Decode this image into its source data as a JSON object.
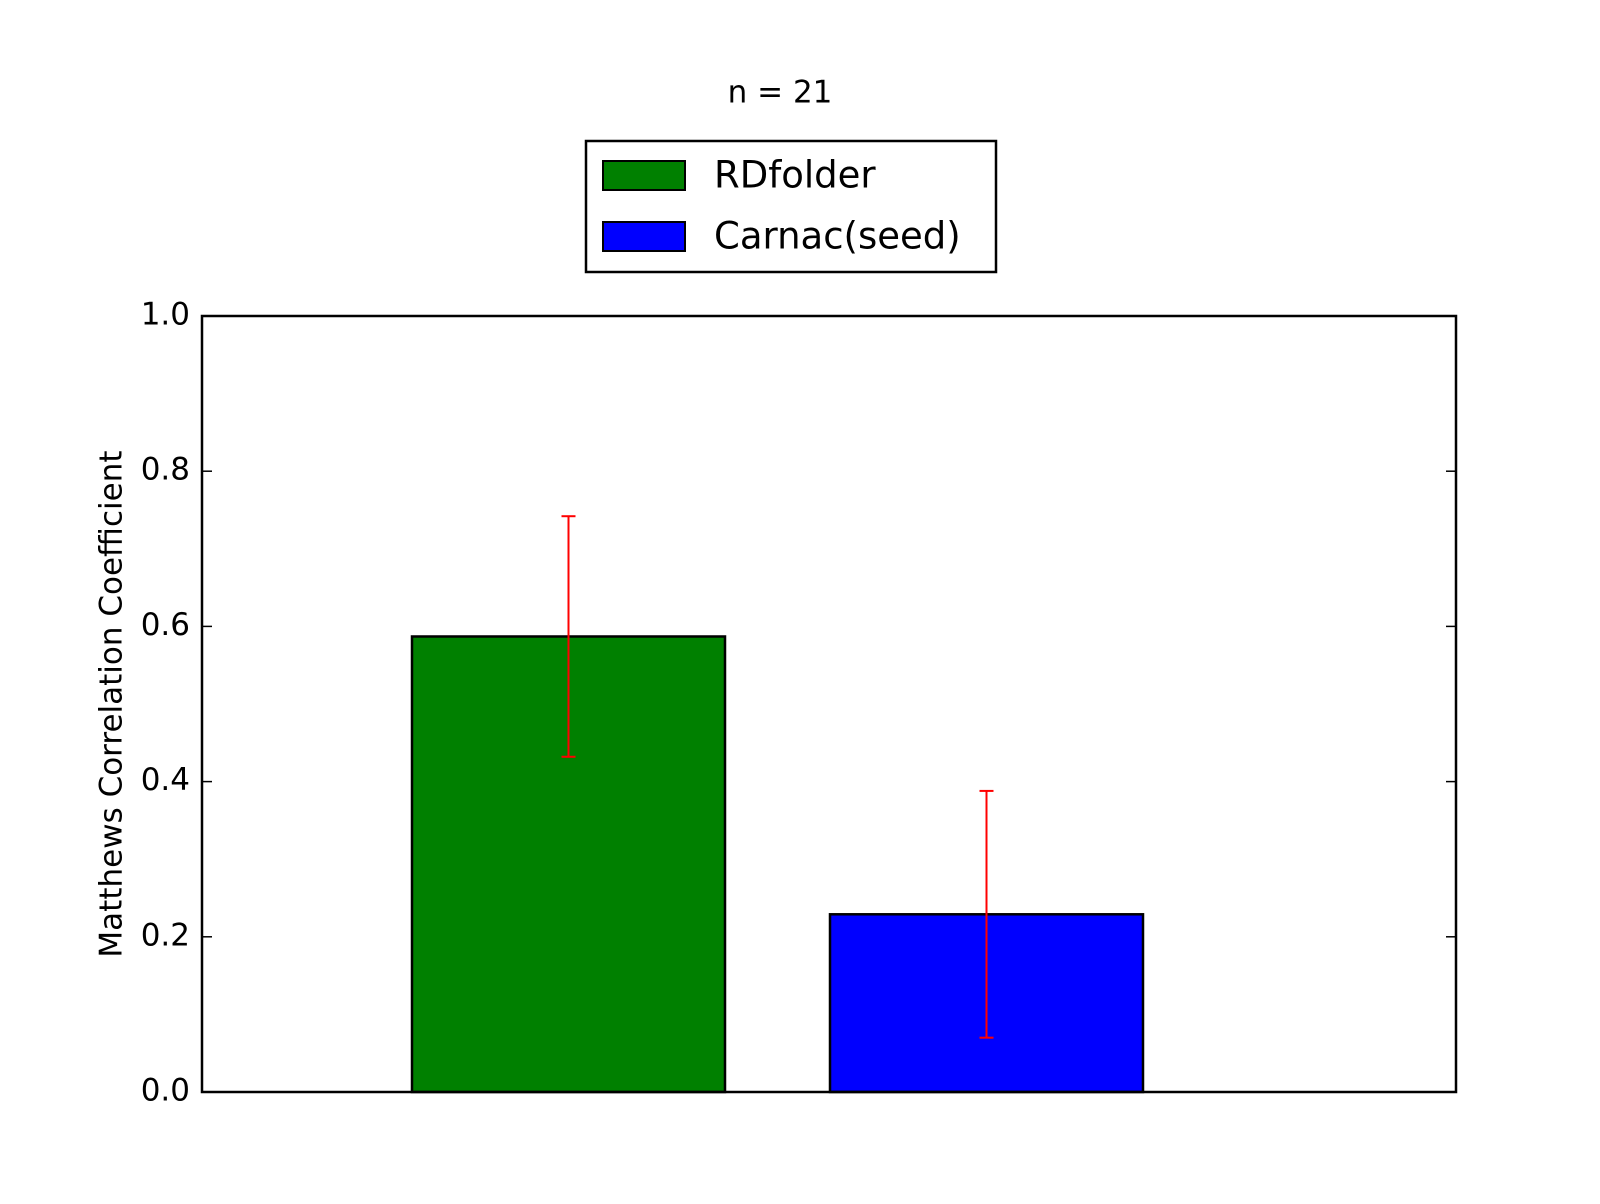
{
  "chart_data": {
    "type": "bar",
    "title": "n = 21",
    "y_label": "Matthews Correlation Coefficient",
    "categories": [
      null
    ],
    "series": [
      {
        "name": "RDfolder",
        "color": "#008000",
        "values": [
          0.587
        ],
        "errors": [
          0.155
        ]
      },
      {
        "name": "Carnac(seed)",
        "color": "#0000ff",
        "values": [
          0.229
        ],
        "errors": [
          0.159
        ]
      }
    ],
    "error_color": "#ff0000",
    "ylim": [
      0,
      1
    ],
    "yticks": [
      {
        "value": 0,
        "label": "0.0"
      },
      0.2,
      0.4,
      0.6,
      0.8,
      {
        "value": 1,
        "label": "1.0"
      }
    ],
    "legend": "top-center"
  }
}
